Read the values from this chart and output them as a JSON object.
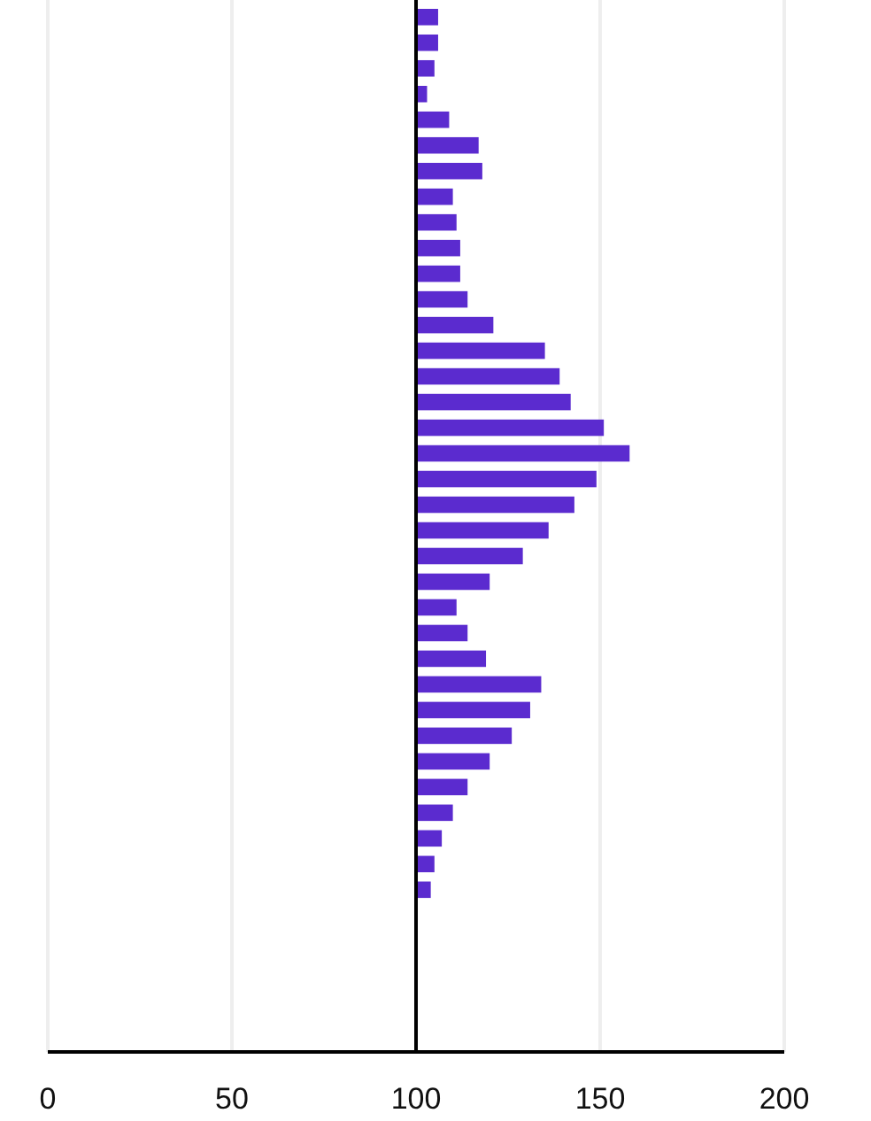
{
  "chart_data": {
    "type": "bar",
    "orientation": "horizontal",
    "categories": [
      null,
      null,
      null,
      null,
      null,
      null,
      null,
      null,
      null,
      null,
      null,
      null,
      null,
      null,
      null,
      null,
      null,
      null,
      null,
      null,
      null,
      null,
      null,
      null,
      null,
      null,
      null,
      null,
      null,
      null,
      null,
      null,
      null,
      null,
      null,
      null,
      null,
      null,
      null,
      null,
      null
    ],
    "values": [
      6,
      6,
      5,
      3,
      9,
      17,
      18,
      10,
      11,
      12,
      12,
      14,
      21,
      35,
      39,
      42,
      51,
      58,
      49,
      43,
      36,
      29,
      20,
      11,
      14,
      19,
      34,
      31,
      26,
      20,
      14,
      10,
      7,
      5,
      4,
      null,
      null,
      null,
      null,
      null,
      null
    ],
    "base": [
      100,
      100,
      100,
      100,
      100,
      100,
      100,
      100,
      100,
      100,
      100,
      100,
      100,
      100,
      100,
      100,
      100,
      100,
      100,
      100,
      100,
      100,
      100,
      100,
      100,
      100,
      100,
      100,
      100,
      100,
      100,
      100,
      100,
      100,
      100,
      null,
      null,
      null,
      null,
      null,
      null
    ],
    "color": "#5b2bcf",
    "xlim": [
      0,
      200
    ],
    "xticks": [
      0,
      50,
      100,
      150,
      200
    ],
    "grid": "x",
    "tick_labels": "x",
    "ref_lines": [
      {
        "axis": "x",
        "value": 100,
        "color": "#000000"
      }
    ]
  }
}
